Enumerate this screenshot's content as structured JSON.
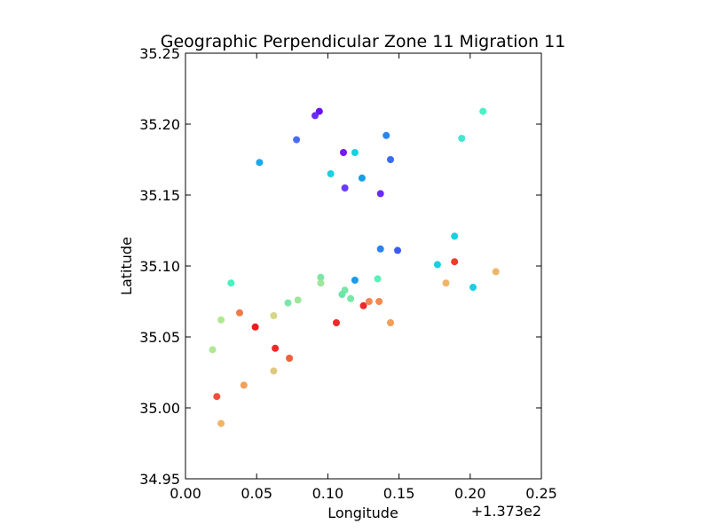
{
  "chart_data": {
    "type": "scatter",
    "title": "Geographic Perpendicular Zone 11 Migration 11",
    "xlabel": "Longitude",
    "ylabel": "Latitude",
    "x_offset_label": "+1.373e2",
    "xlim": [
      0.0,
      0.25
    ],
    "ylim": [
      34.95,
      35.25
    ],
    "xticks": [
      0.0,
      0.05,
      0.1,
      0.15,
      0.2,
      0.25
    ],
    "xtick_labels": [
      "0.00",
      "0.05",
      "0.10",
      "0.15",
      "0.20",
      "0.25"
    ],
    "yticks": [
      34.95,
      35.0,
      35.05,
      35.1,
      35.15,
      35.2,
      35.25
    ],
    "ytick_labels": [
      "34.95",
      "35.00",
      "35.05",
      "35.10",
      "35.15",
      "35.20",
      "35.25"
    ],
    "grid": false,
    "colormap": "rainbow",
    "points": [
      {
        "x": 0.094,
        "y": 35.209,
        "color": "#6a11f5"
      },
      {
        "x": 0.091,
        "y": 35.206,
        "color": "#6a2cf5"
      },
      {
        "x": 0.209,
        "y": 35.209,
        "color": "#4cf0c8"
      },
      {
        "x": 0.078,
        "y": 35.189,
        "color": "#4a6cf5"
      },
      {
        "x": 0.141,
        "y": 35.192,
        "color": "#2a84f2"
      },
      {
        "x": 0.194,
        "y": 35.19,
        "color": "#44e6d2"
      },
      {
        "x": 0.052,
        "y": 35.173,
        "color": "#1aa8e8"
      },
      {
        "x": 0.111,
        "y": 35.18,
        "color": "#7a17f5"
      },
      {
        "x": 0.119,
        "y": 35.18,
        "color": "#1ad0e0"
      },
      {
        "x": 0.144,
        "y": 35.175,
        "color": "#3a6cf3"
      },
      {
        "x": 0.102,
        "y": 35.165,
        "color": "#1ad0e0"
      },
      {
        "x": 0.124,
        "y": 35.162,
        "color": "#1a9ce8"
      },
      {
        "x": 0.112,
        "y": 35.155,
        "color": "#6a3cf5"
      },
      {
        "x": 0.137,
        "y": 35.151,
        "color": "#6a2cf5"
      },
      {
        "x": 0.189,
        "y": 35.121,
        "color": "#1ad0e0"
      },
      {
        "x": 0.137,
        "y": 35.112,
        "color": "#2a84f2"
      },
      {
        "x": 0.149,
        "y": 35.111,
        "color": "#3a5cf0"
      },
      {
        "x": 0.177,
        "y": 35.101,
        "color": "#1ad0e0"
      },
      {
        "x": 0.189,
        "y": 35.103,
        "color": "#f03a2a"
      },
      {
        "x": 0.218,
        "y": 35.096,
        "color": "#f0b46a"
      },
      {
        "x": 0.183,
        "y": 35.088,
        "color": "#f0b46a"
      },
      {
        "x": 0.202,
        "y": 35.085,
        "color": "#1ad0e0"
      },
      {
        "x": 0.095,
        "y": 35.092,
        "color": "#7ae6a8"
      },
      {
        "x": 0.095,
        "y": 35.088,
        "color": "#9ee69a"
      },
      {
        "x": 0.135,
        "y": 35.091,
        "color": "#5af0b8"
      },
      {
        "x": 0.119,
        "y": 35.09,
        "color": "#1a9ce8"
      },
      {
        "x": 0.032,
        "y": 35.088,
        "color": "#4af0c0"
      },
      {
        "x": 0.112,
        "y": 35.083,
        "color": "#7ae6a8"
      },
      {
        "x": 0.11,
        "y": 35.08,
        "color": "#6ae6a8"
      },
      {
        "x": 0.116,
        "y": 35.077,
        "color": "#7ae6a8"
      },
      {
        "x": 0.079,
        "y": 35.076,
        "color": "#9ee69a"
      },
      {
        "x": 0.072,
        "y": 35.074,
        "color": "#7ae6a8"
      },
      {
        "x": 0.129,
        "y": 35.075,
        "color": "#f08a50"
      },
      {
        "x": 0.136,
        "y": 35.075,
        "color": "#f08a50"
      },
      {
        "x": 0.125,
        "y": 35.072,
        "color": "#f0282a"
      },
      {
        "x": 0.038,
        "y": 35.067,
        "color": "#f07a4a"
      },
      {
        "x": 0.062,
        "y": 35.065,
        "color": "#d6d68a"
      },
      {
        "x": 0.025,
        "y": 35.062,
        "color": "#b0e890"
      },
      {
        "x": 0.106,
        "y": 35.06,
        "color": "#f0282a"
      },
      {
        "x": 0.144,
        "y": 35.06,
        "color": "#f0a05a"
      },
      {
        "x": 0.049,
        "y": 35.057,
        "color": "#f01a1a"
      },
      {
        "x": 0.063,
        "y": 35.042,
        "color": "#f0282a"
      },
      {
        "x": 0.019,
        "y": 35.041,
        "color": "#b0e890"
      },
      {
        "x": 0.073,
        "y": 35.035,
        "color": "#f0603a"
      },
      {
        "x": 0.062,
        "y": 35.026,
        "color": "#e0c880"
      },
      {
        "x": 0.041,
        "y": 35.016,
        "color": "#f0a05a"
      },
      {
        "x": 0.022,
        "y": 35.008,
        "color": "#f0503a"
      },
      {
        "x": 0.025,
        "y": 34.989,
        "color": "#f0b46a"
      }
    ]
  }
}
